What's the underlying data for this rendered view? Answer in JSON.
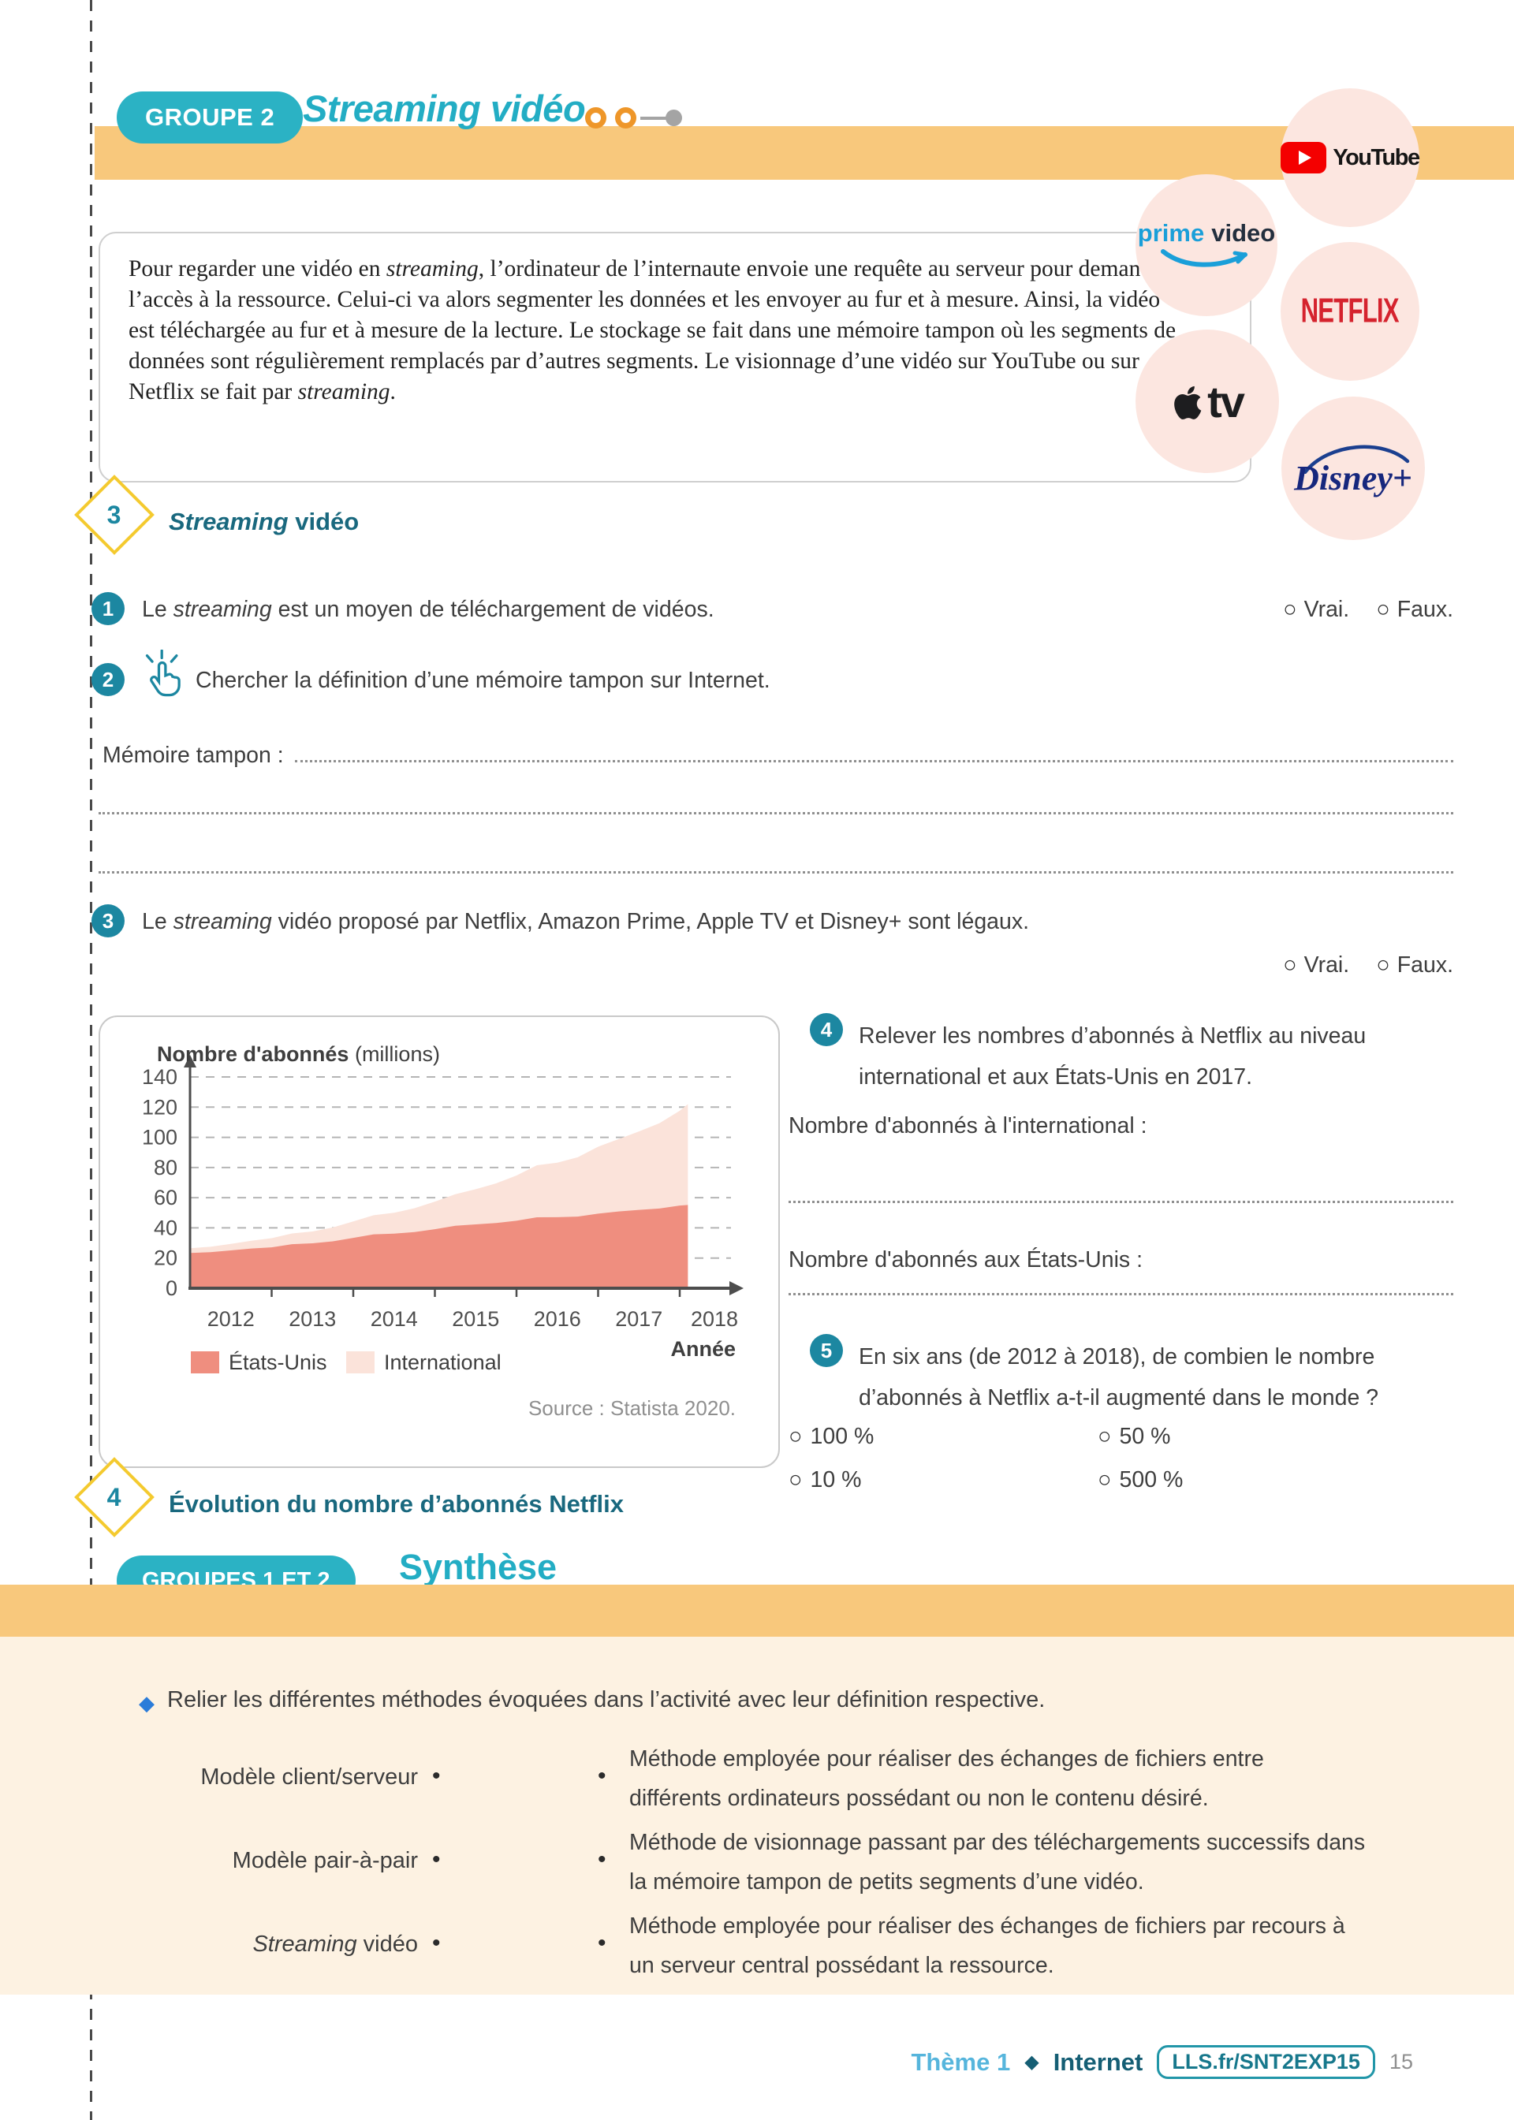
{
  "page": {
    "header": {
      "group_badge": "GROUPE 2",
      "title": "Streaming vidéo"
    },
    "logos": {
      "youtube": "YouTube",
      "prime_word": "prime",
      "video_word": "video",
      "netflix": "NETFLIX",
      "appletv": "tv",
      "disney": "Disney+"
    },
    "intro_segments": [
      {
        "t": "Pour regarder une vidéo en "
      },
      {
        "t": "streaming",
        "i": true
      },
      {
        "t": ", l’ordinateur de l’internaute envoie une requête au serveur pour demander l’accès à la ressource. Celui-ci va alors segmenter les données et les envoyer au fur et à mesure. Ainsi, la vidéo est téléchargée au fur et à mesure de la lecture. Le stockage se fait dans une mémoire tampon où les segments de données sont régulièrement remplacés par d’autres segments. Le visionnage d’une vidéo sur YouTube ou sur Netflix se fait par "
      },
      {
        "t": "streaming",
        "i": true
      },
      {
        "t": "."
      }
    ],
    "activity": {
      "number": "3",
      "title_segments": [
        {
          "t": "Streaming",
          "i": true
        },
        {
          "t": " vidéo"
        }
      ]
    },
    "truefalse": {
      "vrai": "Vrai.",
      "faux": "Faux."
    },
    "questions": {
      "q1": {
        "num": "1",
        "segments": [
          {
            "t": "Le "
          },
          {
            "t": "streaming",
            "i": true
          },
          {
            "t": " est un moyen de téléchargement de vidéos."
          }
        ]
      },
      "q2": {
        "num": "2",
        "segments": [
          {
            "t": "Chercher la définition d’une mémoire tampon sur Internet."
          }
        ]
      },
      "memory_label": "Mémoire tampon :",
      "q3": {
        "num": "3",
        "segments": [
          {
            "t": "Le "
          },
          {
            "t": "streaming",
            "i": true
          },
          {
            "t": " vidéo proposé par Netflix, Amazon Prime, Apple TV et Disney+ sont légaux."
          }
        ]
      },
      "q4": {
        "num": "4",
        "lines": [
          "Relever les nombres d’abonnés à Netflix au niveau",
          "international et aux États-Unis en 2017."
        ],
        "intl_label": "Nombre d'abonnés à l'international :",
        "us_label": "Nombre d'abonnés aux États-Unis :"
      },
      "q5": {
        "num": "5",
        "lines": [
          "En six ans (de 2012 à 2018), de combien le nombre",
          "d’abonnés à Netflix a-t-il augmenté dans le monde ?"
        ],
        "options": [
          "100 %",
          "50 %",
          "10 %",
          "500 %"
        ]
      }
    },
    "figure": {
      "number": "4",
      "caption": "Évolution du nombre d’abonnés Netflix"
    },
    "synthesis": {
      "badge": "GROUPES 1 ET 2",
      "title": "Synthèse",
      "instruction": "Relier les différentes méthodes évoquées dans l’activité avec leur définition respective.",
      "matching": {
        "left": [
          {
            "segments": [
              {
                "t": "Modèle client/serveur"
              }
            ]
          },
          {
            "segments": [
              {
                "t": "Modèle pair-à-pair"
              }
            ]
          },
          {
            "segments": [
              {
                "t": "Streaming",
                "i": true
              },
              {
                "t": " vidéo"
              }
            ]
          }
        ],
        "right": [
          [
            "Méthode employée pour réaliser des échanges de fichiers entre",
            "différents ordinateurs possédant ou non le contenu désiré."
          ],
          [
            "Méthode de visionnage passant par des téléchargements successifs dans",
            "la mémoire tampon de petits segments d’une vidéo."
          ],
          [
            "Méthode employée pour réaliser des échanges de fichiers par recours à",
            "un serveur central possédant la ressource."
          ]
        ]
      }
    },
    "footer": {
      "theme": "Thème 1",
      "section": "Internet",
      "ref": "LLS.fr/SNT2EXP15",
      "page_number": "15"
    }
  },
  "chart_data": {
    "type": "area",
    "stacked": true,
    "title": "Nombre d'abonnés",
    "title_suffix": " (millions)",
    "xlabel": "Année",
    "source": "Source : Statista 2020.",
    "x": [
      2012,
      2012.25,
      2012.5,
      2012.75,
      2013,
      2013.25,
      2013.5,
      2013.75,
      2014,
      2014.25,
      2014.5,
      2014.75,
      2015,
      2015.25,
      2015.5,
      2015.75,
      2016,
      2016.25,
      2016.5,
      2016.75,
      2017,
      2017.25,
      2017.5,
      2017.75,
      2018,
      2018.1
    ],
    "series": [
      {
        "name": "États-Unis",
        "color": "#ef8e7f",
        "values": [
          23.4,
          23.9,
          25.1,
          26.3,
          27.1,
          29.2,
          29.8,
          31.1,
          33.4,
          35.7,
          36.2,
          37.2,
          39.1,
          41.4,
          42.3,
          43.2,
          44.7,
          47.0,
          47.1,
          47.5,
          49.4,
          50.9,
          51.9,
          52.8,
          54.8,
          55.2
        ]
      },
      {
        "name": "International",
        "color": "#fbe3da",
        "values": [
          3.1,
          3.6,
          4.3,
          5.2,
          6.1,
          7.1,
          7.8,
          9.2,
          10.9,
          12.7,
          13.8,
          15.8,
          18.3,
          20.9,
          23.3,
          26.3,
          30.0,
          34.5,
          36.1,
          39.3,
          44.4,
          47.9,
          52.0,
          56.5,
          62.8,
          66.8
        ]
      }
    ],
    "xticks": [
      2012,
      2013,
      2014,
      2015,
      2016,
      2017,
      2018
    ],
    "ylim": [
      0,
      140
    ],
    "ystep": 20,
    "legend_position": "bottom",
    "grid": true
  }
}
